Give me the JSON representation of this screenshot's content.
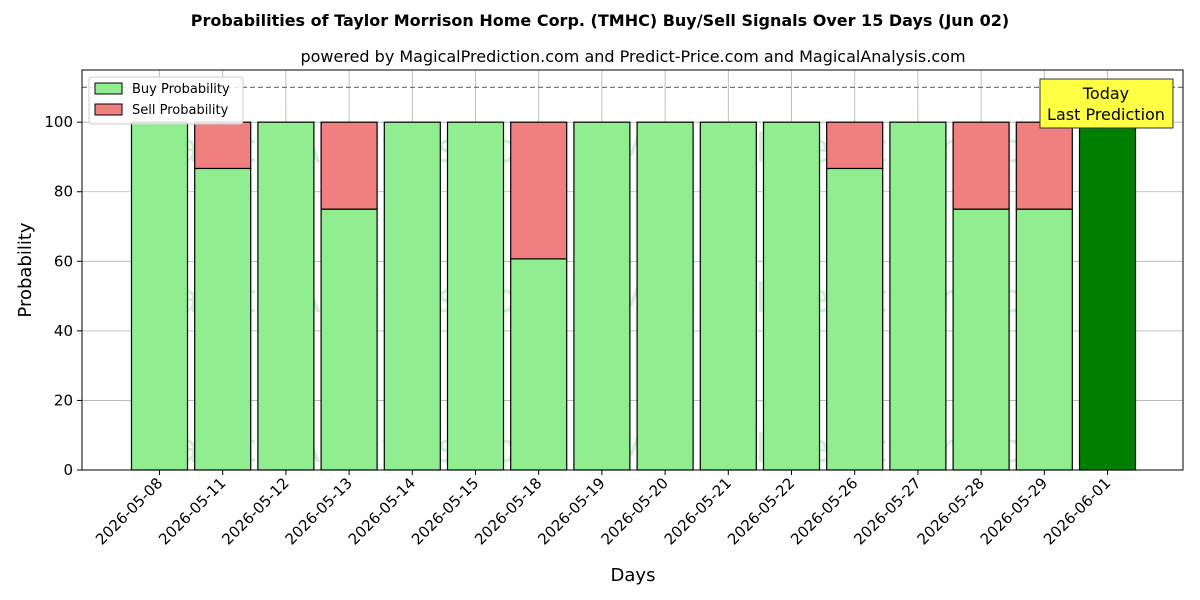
{
  "chart_data": {
    "type": "bar",
    "title": "Probabilities of Taylor Morrison Home Corp. (TMHC) Buy/Sell Signals Over 15 Days (Jun 02)",
    "subtitle": "powered by MagicalPrediction.com and Predict-Price.com and MagicalAnalysis.com",
    "xlabel": "Days",
    "ylabel": "Probability",
    "ylim": [
      0,
      115
    ],
    "yticks": [
      0,
      20,
      40,
      60,
      80,
      100
    ],
    "grid": true,
    "legend_position": "top-left",
    "reference_line": 110,
    "categories": [
      "2026-05-08",
      "2026-05-11",
      "2026-05-12",
      "2026-05-13",
      "2026-05-14",
      "2026-05-15",
      "2026-05-18",
      "2026-05-19",
      "2026-05-20",
      "2026-05-21",
      "2026-05-22",
      "2026-05-26",
      "2026-05-27",
      "2026-05-28",
      "2026-05-29",
      "2026-06-01"
    ],
    "series": [
      {
        "name": "Buy Probability",
        "color": "#90ee90",
        "values": [
          100,
          86.7,
          100,
          75,
          100,
          100,
          60.7,
          100,
          100,
          100,
          100,
          86.7,
          100,
          75,
          75,
          100
        ]
      },
      {
        "name": "Sell Probability",
        "color": "#f08080",
        "values": [
          0,
          13.3,
          0,
          25,
          0,
          0,
          39.3,
          0,
          0,
          0,
          0,
          13.3,
          0,
          25,
          25,
          0
        ]
      }
    ],
    "highlight": {
      "index": 15,
      "color": "#008000"
    },
    "annotation": {
      "lines": [
        "Today",
        "Last Prediction"
      ],
      "background": "#ffff44"
    },
    "watermarks": [
      "MagicalAnalysis.com",
      "MagicalPrediction.com"
    ]
  }
}
